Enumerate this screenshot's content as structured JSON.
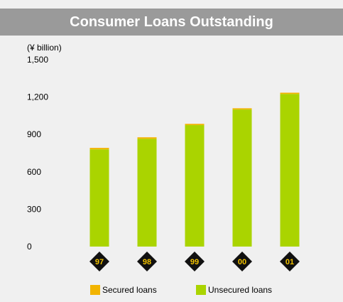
{
  "title": "Consumer Loans Outstanding",
  "chart_data": {
    "type": "bar",
    "stacked": true,
    "unit_label": "(¥ billion)",
    "categories": [
      "97",
      "98",
      "99",
      "00",
      "01"
    ],
    "series": [
      {
        "name": "Unsecured loans",
        "values": [
          780,
          865,
          975,
          1100,
          1225
        ]
      },
      {
        "name": "Secured loans",
        "values": [
          12,
          12,
          10,
          10,
          10
        ]
      }
    ],
    "ylim": [
      0,
      1500
    ],
    "yticks": [
      0,
      300,
      600,
      900,
      1200,
      1500
    ],
    "ytick_labels": [
      "0",
      "300",
      "600",
      "900",
      "1,200",
      "1,500"
    ],
    "grid": false,
    "legend_position": "bottom",
    "colors": {
      "Unsecured loans": "#aad400",
      "Secured loans": "#f2b400",
      "label_badge": "#111111",
      "label_text": "#f2c200"
    }
  }
}
